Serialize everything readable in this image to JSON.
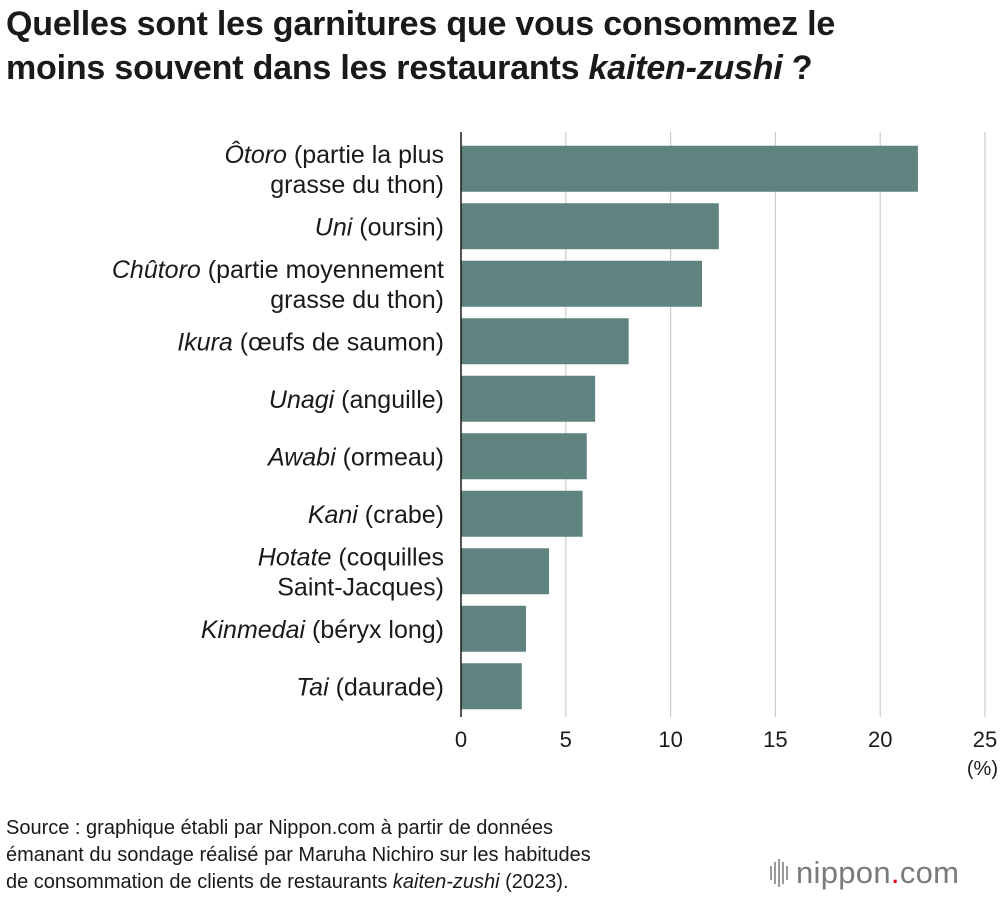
{
  "title": {
    "line1": "Quelles sont les garnitures que vous consommez le",
    "line2_pre": "moins souvent dans les restaurants ",
    "line2_italic": "kaiten-zushi",
    "line2_post": " ?"
  },
  "colors": {
    "bar": "#5f837f",
    "grid": "#cccccc",
    "axis": "#1a1a1a"
  },
  "chart_data": {
    "type": "bar",
    "orientation": "horizontal",
    "categories": [
      "Ôtoro (partie la plus grasse du thon)",
      "Uni (oursin)",
      "Chûtoro (partie moyennement grasse du thon)",
      "Ikura (œufs de saumon)",
      "Unagi (anguille)",
      "Awabi (ormeau)",
      "Kani (crabe)",
      "Hotate (coquilles Saint-Jacques)",
      "Kinmedai (béryx long)",
      "Tai (daurade)"
    ],
    "category_labels": [
      [
        {
          "it": "Ôtoro",
          "rest": " (partie la plus"
        },
        {
          "it": "",
          "rest": "grasse du thon)"
        }
      ],
      [
        {
          "it": "Uni",
          "rest": " (oursin)"
        }
      ],
      [
        {
          "it": "Chûtoro",
          "rest": " (partie moyennement"
        },
        {
          "it": "",
          "rest": "grasse du thon)"
        }
      ],
      [
        {
          "it": "Ikura",
          "rest": " (œufs de saumon)"
        }
      ],
      [
        {
          "it": "Unagi",
          "rest": " (anguille)"
        }
      ],
      [
        {
          "it": "Awabi",
          "rest": " (ormeau)"
        }
      ],
      [
        {
          "it": "Kani",
          "rest": " (crabe)"
        }
      ],
      [
        {
          "it": "Hotate",
          "rest": " (coquilles"
        },
        {
          "it": "",
          "rest": "Saint-Jacques)"
        }
      ],
      [
        {
          "it": "Kinmedai",
          "rest": " (béryx long)"
        }
      ],
      [
        {
          "it": "Tai",
          "rest": " (daurade)"
        }
      ]
    ],
    "values": [
      21.8,
      12.3,
      11.5,
      8.0,
      6.4,
      6.0,
      5.8,
      4.2,
      3.1,
      2.9
    ],
    "xlim": [
      0,
      25
    ],
    "xticks": [
      "0",
      "5",
      "10",
      "15",
      "20",
      "25"
    ],
    "xticks_values": [
      0,
      5,
      10,
      15,
      20,
      25
    ],
    "unit": "(%)",
    "grid": true,
    "legend": "none"
  },
  "source": {
    "line1": "Source : graphique établi par Nippon.com à partir de données",
    "line2": "émanant du sondage réalisé par Maruha Nichiro sur les habitudes",
    "line3_pre": "de consommation de clients de restaurants ",
    "line3_italic": "kaiten-zushi",
    "line3_post": " (2023)."
  },
  "logo": {
    "name": "nippon",
    "dot": ".",
    "tld": "com"
  }
}
